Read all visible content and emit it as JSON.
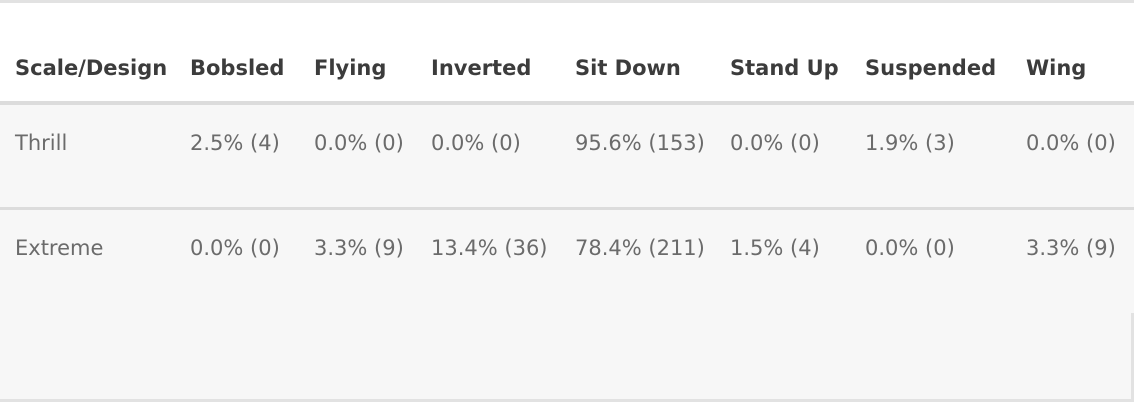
{
  "table": {
    "headers": [
      "Scale/Design",
      "Bobsled",
      "Flying",
      "Inverted",
      "Sit Down",
      "Stand Up",
      "Suspended",
      "Wing"
    ],
    "rows": [
      [
        "Thrill",
        "2.5% (4)",
        "0.0% (0)",
        "0.0% (0)",
        "95.6% (153)",
        "0.0% (0)",
        "1.9% (3)",
        "0.0% (0)"
      ],
      [
        "Extreme",
        "0.0% (0)",
        "3.3% (9)",
        "13.4% (36)",
        "78.4% (211)",
        "1.5% (4)",
        "0.0% (0)",
        "3.3% (9)"
      ]
    ]
  },
  "colors": {
    "header_bg": "#ffffff",
    "row_bg": "#f7f7f7",
    "header_text": "#3c3c3c",
    "cell_text": "#6b6b6b",
    "border": "#dcdcdc"
  }
}
